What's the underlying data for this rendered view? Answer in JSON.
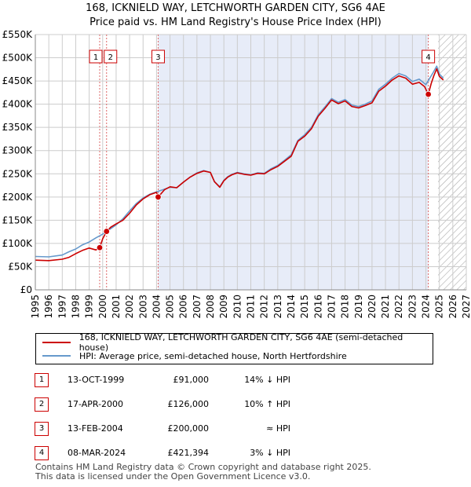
{
  "title_line1": "168, ICKNIELD WAY, LETCHWORTH GARDEN CITY, SG6 4AE",
  "title_line2": "Price paid vs. HM Land Registry's House Price Index (HPI)",
  "colors": {
    "property_line": "#cc0000",
    "hpi_line": "#6699cc",
    "highlight": "#dde4f5",
    "grid": "#cccccc",
    "marker": "#cc0000"
  },
  "chart_data": {
    "type": "line",
    "title": "Price paid vs. HM Land Registry's House Price Index (HPI)",
    "xlabel": "",
    "ylabel": "",
    "xlim": [
      1995,
      2027
    ],
    "ylim": [
      0,
      550000
    ],
    "grid": true,
    "x_ticks": [
      1995,
      1996,
      1997,
      1998,
      1999,
      2000,
      2001,
      2002,
      2003,
      2004,
      2005,
      2006,
      2007,
      2008,
      2009,
      2010,
      2011,
      2012,
      2013,
      2014,
      2015,
      2016,
      2017,
      2018,
      2019,
      2020,
      2021,
      2022,
      2023,
      2024,
      2025,
      2026,
      2027
    ],
    "y_ticks": [
      0,
      50000,
      100000,
      150000,
      200000,
      250000,
      300000,
      350000,
      400000,
      450000,
      500000,
      550000
    ],
    "y_tick_labels": [
      "£0",
      "£50K",
      "£100K",
      "£150K",
      "£200K",
      "£250K",
      "£300K",
      "£350K",
      "£400K",
      "£450K",
      "£500K",
      "£550K"
    ],
    "highlight_region": [
      2004.12,
      2024.18
    ],
    "future_hatch_from": 2024.9,
    "series": [
      {
        "name": "168, ICKNIELD WAY, LETCHWORTH GARDEN CITY, SG6 4AE (semi-detached house)",
        "color": "#cc0000",
        "x": [
          1995,
          1996,
          1997,
          1997.5,
          1998,
          1998.5,
          1999,
          1999.5,
          1999.78,
          2000,
          2000.29,
          2000.6,
          2001,
          2001.5,
          2002,
          2002.5,
          2003,
          2003.5,
          2004,
          2004.12,
          2004.6,
          2005,
          2005.5,
          2006,
          2006.5,
          2007,
          2007.5,
          2008,
          2008.3,
          2008.7,
          2009,
          2009.3,
          2009.6,
          2010,
          2010.5,
          2011,
          2011.5,
          2012,
          2012.5,
          2013,
          2013.5,
          2014,
          2014.5,
          2015,
          2015.5,
          2016,
          2016.5,
          2017,
          2017.5,
          2018,
          2018.5,
          2019,
          2019.5,
          2020,
          2020.5,
          2021,
          2021.5,
          2022,
          2022.5,
          2023,
          2023.5,
          2023.9,
          2024.18,
          2024.4,
          2024.6,
          2024.8,
          2025,
          2025.3
        ],
        "values": [
          64000,
          63000,
          66000,
          70000,
          78000,
          85000,
          90000,
          86000,
          91000,
          110000,
          126000,
          135000,
          142000,
          150000,
          165000,
          183000,
          196000,
          205000,
          210000,
          200000,
          216000,
          222000,
          220000,
          232000,
          243000,
          251000,
          256000,
          253000,
          233000,
          221000,
          235000,
          243000,
          248000,
          252000,
          249000,
          247000,
          251000,
          250000,
          259000,
          266000,
          277000,
          288000,
          320000,
          331000,
          347000,
          374000,
          391000,
          409000,
          401000,
          407000,
          395000,
          392000,
          397000,
          403000,
          428000,
          439000,
          452000,
          461000,
          456000,
          443000,
          447000,
          438000,
          421394,
          445000,
          462000,
          476000,
          460000,
          452000
        ]
      },
      {
        "name": "HPI: Average price, semi-detached house, North Hertfordshire",
        "color": "#6699cc",
        "x": [
          1995,
          1996,
          1997,
          1997.5,
          1998,
          1998.5,
          1999,
          1999.5,
          2000,
          2000.5,
          2001,
          2001.5,
          2002,
          2002.5,
          2003,
          2003.5,
          2004,
          2004.5,
          2005,
          2005.5,
          2006,
          2006.5,
          2007,
          2007.5,
          2008,
          2008.3,
          2008.7,
          2009,
          2009.3,
          2009.6,
          2010,
          2010.5,
          2011,
          2011.5,
          2012,
          2012.5,
          2013,
          2013.5,
          2014,
          2014.5,
          2015,
          2015.5,
          2016,
          2016.5,
          2017,
          2017.5,
          2018,
          2018.5,
          2019,
          2019.5,
          2020,
          2020.5,
          2021,
          2021.5,
          2022,
          2022.5,
          2023,
          2023.5,
          2024,
          2024.5,
          2024.8,
          2025,
          2025.3
        ],
        "values": [
          72000,
          71000,
          75000,
          82000,
          88000,
          97000,
          103000,
          112000,
          120000,
          130000,
          140000,
          153000,
          170000,
          186000,
          198000,
          206000,
          211000,
          216000,
          221000,
          220000,
          232000,
          243000,
          252000,
          257000,
          253000,
          233000,
          222000,
          236000,
          244000,
          249000,
          253000,
          250000,
          248000,
          252000,
          251000,
          261000,
          268000,
          279000,
          291000,
          322000,
          334000,
          350000,
          377000,
          394000,
          412000,
          404000,
          410000,
          398000,
          395000,
          400000,
          407000,
          432000,
          443000,
          456000,
          466000,
          461000,
          449000,
          454000,
          442000,
          466000,
          482000,
          465000,
          456000
        ]
      }
    ],
    "sales": [
      {
        "label": "1",
        "x": 1999.78,
        "y": 91000
      },
      {
        "label": "2",
        "x": 2000.29,
        "y": 126000
      },
      {
        "label": "3",
        "x": 2004.12,
        "y": 200000
      },
      {
        "label": "4",
        "x": 2024.18,
        "y": 421394
      }
    ]
  },
  "legend": {
    "property": "168, ICKNIELD WAY, LETCHWORTH GARDEN CITY, SG6 4AE (semi-detached house)",
    "hpi": "HPI: Average price, semi-detached house, North Hertfordshire"
  },
  "transactions": [
    {
      "num": "1",
      "date": "13-OCT-1999",
      "price": "£91,000",
      "hpi": "14% ↓ HPI"
    },
    {
      "num": "2",
      "date": "17-APR-2000",
      "price": "£126,000",
      "hpi": "10% ↑ HPI"
    },
    {
      "num": "3",
      "date": "13-FEB-2004",
      "price": "£200,000",
      "hpi": "≈ HPI"
    },
    {
      "num": "4",
      "date": "08-MAR-2024",
      "price": "£421,394",
      "hpi": "3% ↓ HPI"
    }
  ],
  "footer_line1": "Contains HM Land Registry data © Crown copyright and database right 2025.",
  "footer_line2": "This data is licensed under the Open Government Licence v3.0."
}
